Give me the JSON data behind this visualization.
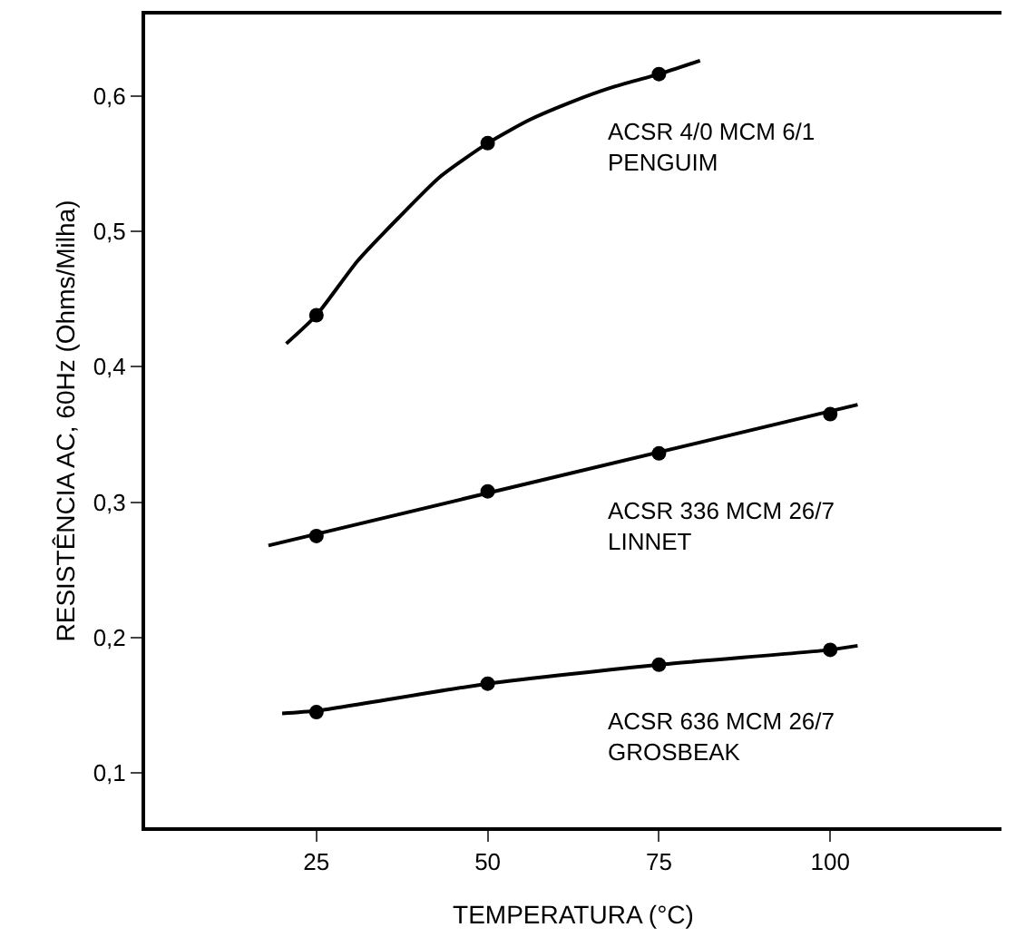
{
  "chart_data": {
    "type": "scatter",
    "xlabel": "TEMPERATURA (°C)",
    "ylabel": "RESISTÊNCIA AC, 60Hz (Ohms/Milha)",
    "xlim": [
      0,
      125
    ],
    "xticks": [
      25,
      50,
      75,
      100
    ],
    "ylim": [
      0.06,
      0.66
    ],
    "yticks": [
      {
        "value": 0.1,
        "label": "0,1"
      },
      {
        "value": 0.2,
        "label": "0,2"
      },
      {
        "value": 0.3,
        "label": "0,3"
      },
      {
        "value": 0.4,
        "label": "0,4"
      },
      {
        "value": 0.5,
        "label": "0,5"
      },
      {
        "value": 0.6,
        "label": "0,6"
      }
    ],
    "grid": false,
    "legend": false,
    "marker": "circle",
    "series": [
      {
        "type": "line",
        "color": "#000000",
        "marker": "none",
        "x": [
          20.6,
          25,
          31,
          37,
          43,
          50,
          56,
          62,
          68,
          75,
          81
        ],
        "values": [
          0.417,
          0.438,
          0.478,
          0.51,
          0.54,
          0.565,
          0.582,
          0.595,
          0.606,
          0.616,
          0.626
        ]
      },
      {
        "type": "scatter",
        "name": "ACSR 4/0 MCM 6/1\nPENGUIM",
        "color": "#000000",
        "x": [
          25,
          50,
          75
        ],
        "values": [
          0.438,
          0.565,
          0.616
        ]
      },
      {
        "type": "line",
        "color": "#000000",
        "marker": "none",
        "x": [
          18,
          104
        ],
        "values": [
          0.268,
          0.372
        ]
      },
      {
        "type": "scatter",
        "name": "ACSR 336 MCM 26/7\nLINNET",
        "color": "#000000",
        "x": [
          25,
          50,
          75,
          100
        ],
        "values": [
          0.275,
          0.308,
          0.336,
          0.365
        ]
      },
      {
        "type": "line",
        "color": "#000000",
        "marker": "none",
        "x": [
          20,
          25,
          50,
          75,
          100,
          104
        ],
        "values": [
          0.144,
          0.146,
          0.166,
          0.18,
          0.191,
          0.194
        ]
      },
      {
        "type": "scatter",
        "name": "ACSR 636 MCM 26/7\nGROSBEAK",
        "color": "#000000",
        "x": [
          25,
          50,
          75,
          100
        ],
        "values": [
          0.145,
          0.166,
          0.18,
          0.191
        ]
      }
    ]
  }
}
